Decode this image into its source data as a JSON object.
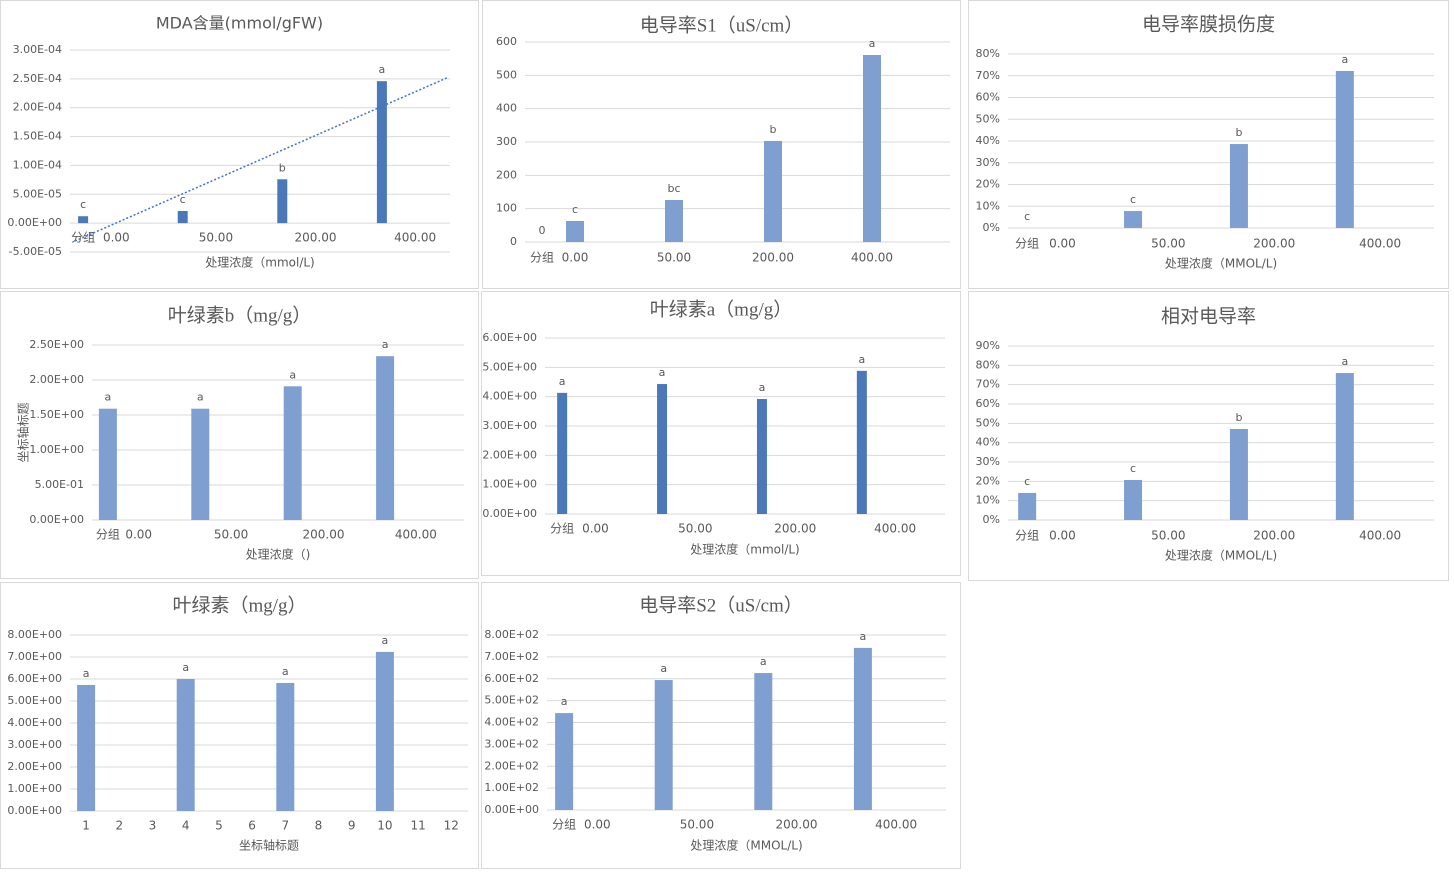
{
  "chart_data": [
    {
      "type": "bar",
      "title": "MDA含量(mmol/gFW)",
      "x_label": "处理浓度（mmol/L)",
      "color": "#4a78b8",
      "trendline": "linear",
      "grid": true,
      "categories": [
        "分组",
        "0.00",
        null,
        null,
        "50.00",
        null,
        null,
        "200.00",
        null,
        null,
        "400.00",
        null
      ],
      "values": [
        1.2e-05,
        null,
        null,
        2.1e-05,
        null,
        null,
        7.6e-05,
        null,
        null,
        0.000246,
        null,
        null
      ],
      "value_labels": [
        "c",
        null,
        null,
        "c",
        null,
        null,
        "b",
        null,
        null,
        "a",
        null,
        null
      ],
      "ylim": [
        -5e-05,
        0.0003
      ],
      "yticks": [
        {
          "value": -5e-05,
          "label": "-5.00E-05"
        },
        {
          "value": 0,
          "label": "0.00E+00"
        },
        {
          "value": 5e-05,
          "label": "5.00E-05"
        },
        {
          "value": 0.0001,
          "label": "1.00E-04"
        },
        {
          "value": 0.00015,
          "label": "1.50E-04"
        },
        {
          "value": 0.0002,
          "label": "2.00E-04"
        },
        {
          "value": 0.00025,
          "label": "2.50E-04"
        },
        {
          "value": 0.0003,
          "label": "3.00E-04"
        }
      ]
    },
    {
      "type": "bar",
      "title": "电导率S1（uS/cm）",
      "color": "#7f9fd0",
      "grid": true,
      "categories": [
        "分组",
        "0.00",
        null,
        null,
        "50.00",
        null,
        null,
        "200.00",
        null,
        null,
        "400.00",
        null
      ],
      "values": [
        0,
        63,
        null,
        null,
        126,
        null,
        null,
        303,
        null,
        null,
        561,
        null
      ],
      "value_labels": [
        "0",
        "c",
        null,
        null,
        "bc",
        null,
        null,
        "b",
        null,
        null,
        "a",
        null
      ],
      "ylim": [
        0,
        600
      ],
      "yticks": [
        0,
        100,
        200,
        300,
        400,
        500,
        600
      ]
    },
    {
      "type": "bar",
      "title": "电导率膜损伤度",
      "x_label": "处理浓度（MMOL/L)",
      "color": "#7f9fd0",
      "grid": true,
      "categories": [
        "分组",
        "0.00",
        null,
        null,
        "50.00",
        null,
        null,
        "200.00",
        null,
        null,
        "400.00",
        null
      ],
      "values": [
        0,
        null,
        null,
        7.8,
        null,
        null,
        38.6,
        null,
        null,
        72.2,
        null,
        null
      ],
      "value_labels": [
        "c",
        null,
        null,
        "c",
        null,
        null,
        "b",
        null,
        null,
        "a",
        null,
        null
      ],
      "ylim": [
        0,
        80
      ],
      "yticks": [
        {
          "value": 0,
          "label": "0%"
        },
        {
          "value": 10,
          "label": "10%"
        },
        {
          "value": 20,
          "label": "20%"
        },
        {
          "value": 30,
          "label": "30%"
        },
        {
          "value": 40,
          "label": "40%"
        },
        {
          "value": 50,
          "label": "50%"
        },
        {
          "value": 60,
          "label": "60%"
        },
        {
          "value": 70,
          "label": "70%"
        },
        {
          "value": 80,
          "label": "80%"
        }
      ]
    },
    {
      "type": "bar",
      "title": "叶绿素b（mg/g）",
      "x_label": "处理浓度（)",
      "y_label": "坐标轴标题",
      "color": "#7f9fd0",
      "grid": true,
      "categories": [
        "分组",
        "0.00",
        null,
        null,
        "50.00",
        null,
        null,
        "200.00",
        null,
        null,
        "400.00",
        null
      ],
      "values": [
        1.59,
        null,
        null,
        1.59,
        null,
        null,
        1.91,
        null,
        null,
        2.34,
        null,
        null
      ],
      "value_labels": [
        "a",
        null,
        null,
        "a",
        null,
        null,
        "a",
        null,
        null,
        "a",
        null,
        null
      ],
      "ylim": [
        0,
        2.5
      ],
      "yticks": [
        {
          "value": 0,
          "label": "0.00E+00"
        },
        {
          "value": 0.5,
          "label": "5.00E-01"
        },
        {
          "value": 1,
          "label": "1.00E+00"
        },
        {
          "value": 1.5,
          "label": "1.50E+00"
        },
        {
          "value": 2,
          "label": "2.00E+00"
        },
        {
          "value": 2.5,
          "label": "2.50E+00"
        }
      ]
    },
    {
      "type": "bar",
      "title": "叶绿素a（mg/g）",
      "x_label": "处理浓度（mmol/L)",
      "color": "#4a78b8",
      "grid": true,
      "categories": [
        "分组",
        "0.00",
        null,
        null,
        "50.00",
        null,
        null,
        "200.00",
        null,
        null,
        "400.00",
        null
      ],
      "values": [
        4.13,
        null,
        null,
        4.43,
        null,
        null,
        3.92,
        null,
        null,
        4.88,
        null,
        null
      ],
      "value_labels": [
        "a",
        null,
        null,
        "a",
        null,
        null,
        "a",
        null,
        null,
        "a",
        null,
        null
      ],
      "ylim": [
        0,
        6
      ],
      "yticks": [
        {
          "value": 0,
          "label": "0.00E+00"
        },
        {
          "value": 1,
          "label": "1.00E+00"
        },
        {
          "value": 2,
          "label": "2.00E+00"
        },
        {
          "value": 3,
          "label": "3.00E+00"
        },
        {
          "value": 4,
          "label": "4.00E+00"
        },
        {
          "value": 5,
          "label": "5.00E+00"
        },
        {
          "value": 6,
          "label": "6.00E+00"
        }
      ]
    },
    {
      "type": "bar",
      "title": "相对电导率",
      "x_label": "处理浓度（MMOL/L)",
      "color": "#7f9fd0",
      "grid": true,
      "categories": [
        "分组",
        "0.00",
        null,
        null,
        "50.00",
        null,
        null,
        "200.00",
        null,
        null,
        "400.00",
        null
      ],
      "values": [
        14.0,
        null,
        null,
        20.7,
        null,
        null,
        47.1,
        null,
        null,
        76.0,
        null,
        null
      ],
      "value_labels": [
        "c",
        null,
        null,
        "c",
        null,
        null,
        "b",
        null,
        null,
        "a",
        null,
        null
      ],
      "ylim": [
        0,
        90
      ],
      "yticks": [
        {
          "value": 0,
          "label": "0%"
        },
        {
          "value": 10,
          "label": "10%"
        },
        {
          "value": 20,
          "label": "20%"
        },
        {
          "value": 30,
          "label": "30%"
        },
        {
          "value": 40,
          "label": "40%"
        },
        {
          "value": 50,
          "label": "50%"
        },
        {
          "value": 60,
          "label": "60%"
        },
        {
          "value": 70,
          "label": "70%"
        },
        {
          "value": 80,
          "label": "80%"
        },
        {
          "value": 90,
          "label": "90%"
        }
      ]
    },
    {
      "type": "bar",
      "title": "叶绿素（mg/g）",
      "x_label": "坐标轴标题",
      "color": "#7f9fd0",
      "grid": true,
      "categories": [
        "1",
        "2",
        "3",
        "4",
        "5",
        "6",
        "7",
        "8",
        "9",
        "10",
        "11",
        "12"
      ],
      "values": [
        5.73,
        null,
        null,
        6.0,
        null,
        null,
        5.82,
        null,
        null,
        7.23,
        null,
        null
      ],
      "value_labels": [
        "a",
        null,
        null,
        "a",
        null,
        null,
        "a",
        null,
        null,
        "a",
        null,
        null
      ],
      "ylim": [
        0,
        8
      ],
      "yticks": [
        {
          "value": 0,
          "label": "0.00E+00"
        },
        {
          "value": 1,
          "label": "1.00E+00"
        },
        {
          "value": 2,
          "label": "2.00E+00"
        },
        {
          "value": 3,
          "label": "3.00E+00"
        },
        {
          "value": 4,
          "label": "4.00E+00"
        },
        {
          "value": 5,
          "label": "5.00E+00"
        },
        {
          "value": 6,
          "label": "6.00E+00"
        },
        {
          "value": 7,
          "label": "7.00E+00"
        },
        {
          "value": 8,
          "label": "8.00E+00"
        }
      ]
    },
    {
      "type": "bar",
      "title": "电导率S2（uS/cm）",
      "x_label": "处理浓度（MMOL/L)",
      "color": "#7f9fd0",
      "grid": true,
      "categories": [
        "分组",
        "0.00",
        null,
        null,
        "50.00",
        null,
        null,
        "200.00",
        null,
        null,
        "400.00",
        null
      ],
      "values": [
        443,
        null,
        null,
        594,
        null,
        null,
        626,
        null,
        null,
        741,
        null,
        null
      ],
      "value_labels": [
        "a",
        null,
        null,
        "a",
        null,
        null,
        "a",
        null,
        null,
        "a",
        null,
        null
      ],
      "ylim": [
        0,
        800
      ],
      "yticks": [
        {
          "value": 0,
          "label": "0.00E+00"
        },
        {
          "value": 100,
          "label": "1.00E+02"
        },
        {
          "value": 200,
          "label": "2.00E+02"
        },
        {
          "value": 300,
          "label": "3.00E+02"
        },
        {
          "value": 400,
          "label": "4.00E+02"
        },
        {
          "value": 500,
          "label": "5.00E+02"
        },
        {
          "value": 600,
          "label": "6.00E+02"
        },
        {
          "value": 700,
          "label": "7.00E+02"
        },
        {
          "value": 800,
          "label": "8.00E+02"
        }
      ]
    }
  ]
}
